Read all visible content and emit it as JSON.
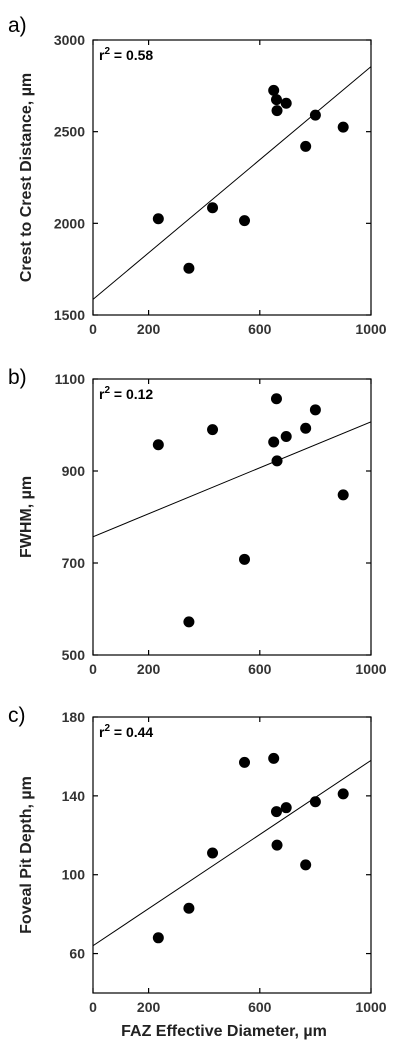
{
  "chart_data": [
    {
      "type": "scatter",
      "panel_label": "a)",
      "annotation": "r2 = 0.58",
      "ylabel": "Crest to Crest Distance, µm",
      "xlabel": "",
      "xlim": [
        0,
        1000
      ],
      "ylim": [
        1500,
        3000
      ],
      "xticks": [
        0,
        200,
        600,
        1000
      ],
      "yticks": [
        1500,
        2000,
        2500,
        3000
      ],
      "x": [
        235,
        345,
        430,
        545,
        650,
        660,
        662,
        695,
        765,
        800,
        900
      ],
      "y": [
        2025,
        1755,
        2085,
        2015,
        2725,
        2675,
        2615,
        2655,
        2420,
        2590,
        2525
      ],
      "fit": [
        [
          0,
          1585
        ],
        [
          1000,
          2855
        ]
      ]
    },
    {
      "type": "scatter",
      "panel_label": "b)",
      "annotation": "r2 = 0.12",
      "ylabel": "FWHM, µm",
      "xlabel": "",
      "xlim": [
        0,
        1000
      ],
      "ylim": [
        500,
        1100
      ],
      "xticks": [
        0,
        200,
        600,
        1000
      ],
      "yticks": [
        500,
        700,
        900,
        1100
      ],
      "x": [
        235,
        345,
        430,
        545,
        650,
        660,
        662,
        695,
        765,
        800,
        900
      ],
      "y": [
        957,
        572,
        990,
        708,
        963,
        1057,
        922,
        975,
        993,
        1033,
        848
      ],
      "fit": [
        [
          0,
          757
        ],
        [
          1000,
          1007
        ]
      ]
    },
    {
      "type": "scatter",
      "panel_label": "c)",
      "annotation": "r2 = 0.44",
      "ylabel": "Foveal Pit Depth, µm",
      "xlabel": "FAZ Effective Diameter, µm",
      "xlim": [
        0,
        1000
      ],
      "ylim": [
        40,
        180
      ],
      "xticks": [
        0,
        200,
        600,
        1000
      ],
      "yticks": [
        60,
        100,
        140,
        180
      ],
      "x": [
        235,
        345,
        430,
        545,
        650,
        660,
        662,
        695,
        765,
        800,
        900
      ],
      "y": [
        68,
        83,
        111,
        157,
        159,
        132,
        115,
        134,
        105,
        137,
        141
      ],
      "fit": [
        [
          0,
          64
        ],
        [
          1000,
          158
        ]
      ]
    }
  ]
}
